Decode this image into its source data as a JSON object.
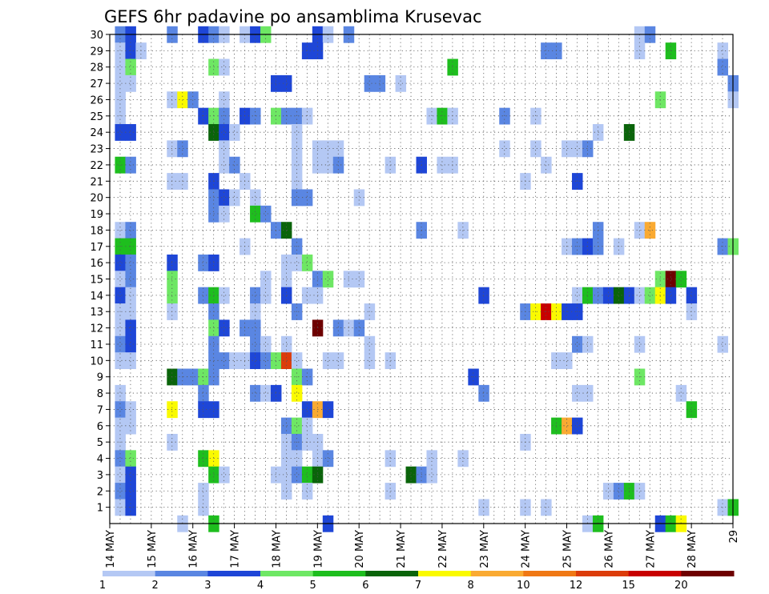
{
  "chart_data": {
    "type": "heatmap",
    "title": "GEFS 6hr padavine po ansamblima Krusevac",
    "xlabel": "",
    "ylabel": "",
    "x_ticks": [
      "14 MAY",
      "15 MAY",
      "16 MAY",
      "17 MAY",
      "18 MAY",
      "19 MAY",
      "20 MAY",
      "21 MAY",
      "22 MAY",
      "23 MAY",
      "24 MAY",
      "25 MAY",
      "26 MAY",
      "27 MAY",
      "28 MAY",
      "29"
    ],
    "y_ticks": [
      "1",
      "2",
      "3",
      "4",
      "5",
      "6",
      "7",
      "8",
      "9",
      "10",
      "11",
      "12",
      "13",
      "14",
      "15",
      "16",
      "17",
      "18",
      "19",
      "20",
      "21",
      "22",
      "23",
      "24",
      "25",
      "26",
      "27",
      "28",
      "29",
      "30"
    ],
    "time_steps_per_day": 4,
    "xlim": [
      0,
      60
    ],
    "ylim": [
      0,
      30
    ],
    "grid": true,
    "legend": "bottom",
    "colorbar": {
      "labels": [
        "1",
        "2",
        "3",
        "4",
        "5",
        "6",
        "7",
        "8",
        "10",
        "12",
        "15",
        "20"
      ],
      "colors": [
        "#b4c8f4",
        "#5a86e2",
        "#1e46d7",
        "#6ee764",
        "#1ebe1e",
        "#0a640a",
        "#fafa00",
        "#faaa32",
        "#f07814",
        "#dc3c0a",
        "#c80000",
        "#6e0000"
      ]
    },
    "cells": [
      [
        1,
        30,
        2
      ],
      [
        2,
        30,
        3
      ],
      [
        6,
        30,
        2
      ],
      [
        9,
        30,
        3
      ],
      [
        10,
        30,
        2
      ],
      [
        11,
        30,
        1
      ],
      [
        13,
        30,
        1
      ],
      [
        14,
        30,
        3
      ],
      [
        15,
        30,
        4
      ],
      [
        20,
        30,
        3
      ],
      [
        21,
        30,
        1
      ],
      [
        23,
        30,
        2
      ],
      [
        51,
        30,
        1
      ],
      [
        52,
        30,
        2
      ],
      [
        1,
        29,
        1
      ],
      [
        2,
        29,
        3
      ],
      [
        3,
        29,
        1
      ],
      [
        19,
        29,
        3
      ],
      [
        20,
        29,
        3
      ],
      [
        42,
        29,
        2
      ],
      [
        43,
        29,
        2
      ],
      [
        51,
        29,
        1
      ],
      [
        54,
        29,
        5
      ],
      [
        59,
        29,
        1
      ],
      [
        1,
        28,
        1
      ],
      [
        2,
        28,
        4
      ],
      [
        10,
        28,
        4
      ],
      [
        11,
        28,
        1
      ],
      [
        33,
        28,
        5
      ],
      [
        59,
        28,
        2
      ],
      [
        1,
        27,
        1
      ],
      [
        2,
        27,
        1
      ],
      [
        16,
        27,
        3
      ],
      [
        17,
        27,
        3
      ],
      [
        25,
        27,
        2
      ],
      [
        26,
        27,
        2
      ],
      [
        28,
        27,
        1
      ],
      [
        60,
        27,
        2
      ],
      [
        1,
        26,
        1
      ],
      [
        6,
        26,
        1
      ],
      [
        7,
        26,
        7
      ],
      [
        8,
        26,
        2
      ],
      [
        11,
        26,
        1
      ],
      [
        53,
        26,
        4
      ],
      [
        60,
        26,
        1
      ],
      [
        1,
        25,
        1
      ],
      [
        9,
        25,
        3
      ],
      [
        10,
        25,
        4
      ],
      [
        11,
        25,
        2
      ],
      [
        13,
        25,
        3
      ],
      [
        14,
        25,
        2
      ],
      [
        16,
        25,
        4
      ],
      [
        17,
        25,
        2
      ],
      [
        18,
        25,
        2
      ],
      [
        19,
        25,
        1
      ],
      [
        31,
        25,
        1
      ],
      [
        32,
        25,
        5
      ],
      [
        33,
        25,
        1
      ],
      [
        38,
        25,
        2
      ],
      [
        41,
        25,
        1
      ],
      [
        1,
        24,
        3
      ],
      [
        2,
        24,
        3
      ],
      [
        10,
        24,
        6
      ],
      [
        11,
        24,
        3
      ],
      [
        12,
        24,
        1
      ],
      [
        18,
        24,
        1
      ],
      [
        47,
        24,
        1
      ],
      [
        50,
        24,
        6
      ],
      [
        6,
        23,
        1
      ],
      [
        7,
        23,
        2
      ],
      [
        11,
        23,
        1
      ],
      [
        18,
        23,
        1
      ],
      [
        20,
        23,
        1
      ],
      [
        21,
        23,
        1
      ],
      [
        22,
        23,
        1
      ],
      [
        38,
        23,
        1
      ],
      [
        41,
        23,
        1
      ],
      [
        44,
        23,
        1
      ],
      [
        45,
        23,
        1
      ],
      [
        46,
        23,
        2
      ],
      [
        1,
        22,
        5
      ],
      [
        2,
        22,
        2
      ],
      [
        11,
        22,
        1
      ],
      [
        12,
        22,
        2
      ],
      [
        18,
        22,
        1
      ],
      [
        20,
        22,
        1
      ],
      [
        21,
        22,
        1
      ],
      [
        22,
        22,
        2
      ],
      [
        27,
        22,
        1
      ],
      [
        30,
        22,
        3
      ],
      [
        32,
        22,
        1
      ],
      [
        33,
        22,
        1
      ],
      [
        42,
        22,
        1
      ],
      [
        6,
        21,
        1
      ],
      [
        7,
        21,
        1
      ],
      [
        10,
        21,
        3
      ],
      [
        13,
        21,
        1
      ],
      [
        18,
        21,
        1
      ],
      [
        40,
        21,
        1
      ],
      [
        45,
        21,
        3
      ],
      [
        10,
        20,
        2
      ],
      [
        11,
        20,
        3
      ],
      [
        12,
        20,
        1
      ],
      [
        14,
        20,
        1
      ],
      [
        18,
        20,
        2
      ],
      [
        19,
        20,
        2
      ],
      [
        24,
        20,
        1
      ],
      [
        10,
        19,
        2
      ],
      [
        11,
        19,
        1
      ],
      [
        14,
        19,
        5
      ],
      [
        15,
        19,
        2
      ],
      [
        1,
        18,
        1
      ],
      [
        2,
        18,
        2
      ],
      [
        16,
        18,
        2
      ],
      [
        17,
        18,
        6
      ],
      [
        30,
        18,
        2
      ],
      [
        34,
        18,
        1
      ],
      [
        47,
        18,
        2
      ],
      [
        51,
        18,
        1
      ],
      [
        52,
        18,
        8
      ],
      [
        1,
        17,
        5
      ],
      [
        2,
        17,
        5
      ],
      [
        13,
        17,
        1
      ],
      [
        18,
        17,
        2
      ],
      [
        44,
        17,
        1
      ],
      [
        45,
        17,
        2
      ],
      [
        46,
        17,
        3
      ],
      [
        47,
        17,
        2
      ],
      [
        49,
        17,
        1
      ],
      [
        59,
        17,
        2
      ],
      [
        60,
        17,
        4
      ],
      [
        1,
        16,
        3
      ],
      [
        2,
        16,
        2
      ],
      [
        6,
        16,
        3
      ],
      [
        9,
        16,
        2
      ],
      [
        10,
        16,
        3
      ],
      [
        17,
        16,
        1
      ],
      [
        18,
        16,
        1
      ],
      [
        19,
        16,
        4
      ],
      [
        1,
        15,
        1
      ],
      [
        2,
        15,
        2
      ],
      [
        6,
        15,
        4
      ],
      [
        15,
        15,
        1
      ],
      [
        17,
        15,
        1
      ],
      [
        20,
        15,
        2
      ],
      [
        21,
        15,
        4
      ],
      [
        23,
        15,
        1
      ],
      [
        24,
        15,
        1
      ],
      [
        53,
        15,
        4
      ],
      [
        54,
        15,
        12
      ],
      [
        55,
        15,
        5
      ],
      [
        1,
        14,
        3
      ],
      [
        2,
        14,
        1
      ],
      [
        6,
        14,
        4
      ],
      [
        9,
        14,
        2
      ],
      [
        10,
        14,
        5
      ],
      [
        11,
        14,
        1
      ],
      [
        14,
        14,
        2
      ],
      [
        15,
        14,
        1
      ],
      [
        17,
        14,
        3
      ],
      [
        19,
        14,
        1
      ],
      [
        20,
        14,
        1
      ],
      [
        36,
        14,
        3
      ],
      [
        45,
        14,
        1
      ],
      [
        46,
        14,
        5
      ],
      [
        47,
        14,
        2
      ],
      [
        48,
        14,
        3
      ],
      [
        49,
        14,
        6
      ],
      [
        50,
        14,
        3
      ],
      [
        51,
        14,
        1
      ],
      [
        52,
        14,
        4
      ],
      [
        53,
        14,
        7
      ],
      [
        54,
        14,
        3
      ],
      [
        56,
        14,
        3
      ],
      [
        1,
        13,
        1
      ],
      [
        2,
        13,
        1
      ],
      [
        6,
        13,
        1
      ],
      [
        10,
        13,
        2
      ],
      [
        14,
        13,
        1
      ],
      [
        18,
        13,
        2
      ],
      [
        25,
        13,
        1
      ],
      [
        40,
        13,
        2
      ],
      [
        41,
        13,
        7
      ],
      [
        42,
        13,
        11
      ],
      [
        43,
        13,
        7
      ],
      [
        44,
        13,
        3
      ],
      [
        45,
        13,
        3
      ],
      [
        56,
        13,
        1
      ],
      [
        1,
        12,
        1
      ],
      [
        2,
        12,
        3
      ],
      [
        10,
        12,
        4
      ],
      [
        11,
        12,
        3
      ],
      [
        13,
        12,
        2
      ],
      [
        14,
        12,
        2
      ],
      [
        20,
        12,
        12
      ],
      [
        22,
        12,
        2
      ],
      [
        23,
        12,
        1
      ],
      [
        24,
        12,
        2
      ],
      [
        1,
        11,
        2
      ],
      [
        2,
        11,
        3
      ],
      [
        10,
        11,
        2
      ],
      [
        14,
        11,
        2
      ],
      [
        15,
        11,
        1
      ],
      [
        17,
        11,
        1
      ],
      [
        25,
        11,
        1
      ],
      [
        45,
        11,
        2
      ],
      [
        46,
        11,
        1
      ],
      [
        51,
        11,
        1
      ],
      [
        59,
        11,
        1
      ],
      [
        1,
        10,
        1
      ],
      [
        2,
        10,
        1
      ],
      [
        10,
        10,
        2
      ],
      [
        11,
        10,
        2
      ],
      [
        12,
        10,
        1
      ],
      [
        13,
        10,
        1
      ],
      [
        14,
        10,
        3
      ],
      [
        15,
        10,
        2
      ],
      [
        16,
        10,
        4
      ],
      [
        17,
        10,
        10
      ],
      [
        18,
        10,
        1
      ],
      [
        21,
        10,
        1
      ],
      [
        22,
        10,
        1
      ],
      [
        25,
        10,
        1
      ],
      [
        27,
        10,
        1
      ],
      [
        43,
        10,
        1
      ],
      [
        44,
        10,
        1
      ],
      [
        6,
        9,
        6
      ],
      [
        7,
        9,
        2
      ],
      [
        8,
        9,
        2
      ],
      [
        9,
        9,
        4
      ],
      [
        10,
        9,
        2
      ],
      [
        18,
        9,
        4
      ],
      [
        19,
        9,
        2
      ],
      [
        35,
        9,
        3
      ],
      [
        51,
        9,
        4
      ],
      [
        1,
        8,
        1
      ],
      [
        9,
        8,
        2
      ],
      [
        14,
        8,
        2
      ],
      [
        15,
        8,
        1
      ],
      [
        16,
        8,
        3
      ],
      [
        18,
        8,
        7
      ],
      [
        36,
        8,
        2
      ],
      [
        45,
        8,
        1
      ],
      [
        46,
        8,
        1
      ],
      [
        55,
        8,
        1
      ],
      [
        1,
        7,
        2
      ],
      [
        2,
        7,
        1
      ],
      [
        6,
        7,
        7
      ],
      [
        9,
        7,
        3
      ],
      [
        10,
        7,
        3
      ],
      [
        19,
        7,
        3
      ],
      [
        20,
        7,
        8
      ],
      [
        21,
        7,
        3
      ],
      [
        56,
        7,
        5
      ],
      [
        1,
        6,
        1
      ],
      [
        2,
        6,
        1
      ],
      [
        17,
        6,
        2
      ],
      [
        18,
        6,
        4
      ],
      [
        19,
        6,
        1
      ],
      [
        43,
        6,
        5
      ],
      [
        44,
        6,
        8
      ],
      [
        45,
        6,
        3
      ],
      [
        1,
        5,
        1
      ],
      [
        6,
        5,
        1
      ],
      [
        17,
        5,
        1
      ],
      [
        18,
        5,
        2
      ],
      [
        19,
        5,
        1
      ],
      [
        20,
        5,
        1
      ],
      [
        40,
        5,
        1
      ],
      [
        1,
        4,
        2
      ],
      [
        2,
        4,
        4
      ],
      [
        9,
        4,
        5
      ],
      [
        10,
        4,
        7
      ],
      [
        17,
        4,
        1
      ],
      [
        18,
        4,
        1
      ],
      [
        20,
        4,
        1
      ],
      [
        21,
        4,
        2
      ],
      [
        27,
        4,
        1
      ],
      [
        31,
        4,
        1
      ],
      [
        34,
        4,
        1
      ],
      [
        1,
        3,
        1
      ],
      [
        2,
        3,
        3
      ],
      [
        10,
        3,
        5
      ],
      [
        11,
        3,
        1
      ],
      [
        16,
        3,
        1
      ],
      [
        17,
        3,
        1
      ],
      [
        18,
        3,
        2
      ],
      [
        19,
        3,
        5
      ],
      [
        20,
        3,
        6
      ],
      [
        29,
        3,
        6
      ],
      [
        30,
        3,
        2
      ],
      [
        31,
        3,
        1
      ],
      [
        1,
        2,
        2
      ],
      [
        2,
        2,
        3
      ],
      [
        9,
        2,
        1
      ],
      [
        17,
        2,
        1
      ],
      [
        19,
        2,
        1
      ],
      [
        27,
        2,
        1
      ],
      [
        48,
        2,
        1
      ],
      [
        49,
        2,
        2
      ],
      [
        50,
        2,
        5
      ],
      [
        51,
        2,
        1
      ],
      [
        1,
        1,
        1
      ],
      [
        2,
        1,
        3
      ],
      [
        9,
        1,
        1
      ],
      [
        36,
        1,
        1
      ],
      [
        40,
        1,
        1
      ],
      [
        42,
        1,
        1
      ],
      [
        59,
        1,
        1
      ],
      [
        60,
        1,
        5
      ],
      [
        7,
        0,
        1
      ],
      [
        10,
        0,
        5
      ],
      [
        21,
        0,
        3
      ],
      [
        46,
        0,
        1
      ],
      [
        47,
        0,
        5
      ],
      [
        53,
        0,
        3
      ],
      [
        54,
        0,
        5
      ],
      [
        55,
        0,
        7
      ]
    ]
  }
}
